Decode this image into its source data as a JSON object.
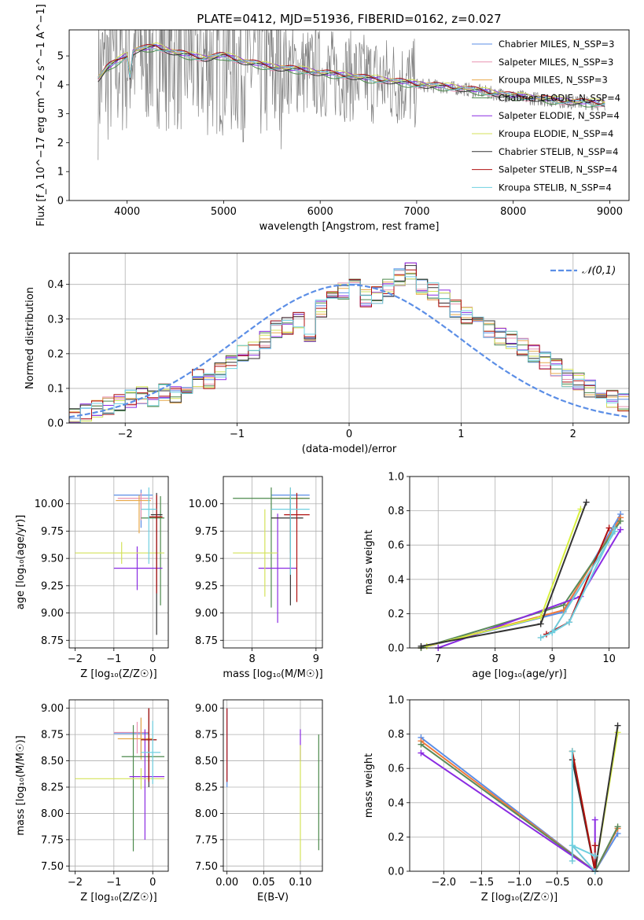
{
  "colors": {
    "series": [
      "#5b8ee6",
      "#e892b0",
      "#e8a84a",
      "#4c8a4c",
      "#8a2be2",
      "#d4e25a",
      "#333333",
      "#b01010",
      "#6fd0e0"
    ],
    "thick": [
      "#5b8ee6",
      "#f07a3c",
      "#5a8a5a",
      "#8a2be2",
      "#d8f040",
      "#333333",
      "#b01010",
      "#70c8d8"
    ],
    "grey_data": "#808080",
    "gauss": "#5b8ee6"
  },
  "chart_data": [
    {
      "id": "spectrum",
      "type": "line",
      "title": "PLATE=0412, MJD=51936, FIBERID=0162, z=0.027",
      "xlabel": "wavelength [Angstrom, rest frame]",
      "ylabel": "Flux [f_λ 10^−17 erg cm^−2 s^−1 A^−1]",
      "xlim": [
        3400,
        9200
      ],
      "ylim": [
        0,
        5.9
      ],
      "xticks": [
        4000,
        5000,
        6000,
        7000,
        8000,
        9000
      ],
      "yticks": [
        0,
        1,
        2,
        3,
        4,
        5
      ],
      "legend": [
        "Chabrier MILES, N_SSP=3",
        "Salpeter MILES, N_SSP=3",
        "Kroupa MILES, N_SSP=3",
        "Chabrier ELODIE, N_SSP=4",
        "Salpeter ELODIE, N_SSP=4",
        "Kroupa ELODIE, N_SSP=4",
        "Chabrier STELIB, N_SSP=4",
        "Salpeter STELIB, N_SSP=4",
        "Kroupa STELIB, N_SSP=4"
      ],
      "legend_position": "top-right",
      "continuum": {
        "x": [
          3700,
          3800,
          3900,
          4000,
          4100,
          4300,
          4500,
          4800,
          5000,
          5200,
          5500,
          5800,
          6000,
          6300,
          6500,
          6800,
          7000,
          7200,
          7500,
          7800,
          8000,
          8300,
          8600,
          8900
        ],
        "y": [
          4.2,
          4.6,
          4.8,
          5.0,
          5.2,
          5.3,
          5.1,
          4.9,
          5.0,
          4.8,
          4.6,
          4.5,
          4.4,
          4.3,
          4.2,
          4.1,
          4.0,
          3.95,
          3.85,
          3.7,
          3.6,
          3.5,
          3.4,
          3.35
        ]
      }
    },
    {
      "id": "residuals",
      "type": "line",
      "xlabel": "(data-model)/error",
      "ylabel": "Normed distribution",
      "xlim": [
        -2.5,
        2.5
      ],
      "ylim": [
        0,
        0.49
      ],
      "xticks": [
        -2,
        -1,
        0,
        1,
        2
      ],
      "yticks": [
        0.0,
        0.1,
        0.2,
        0.3,
        0.4
      ],
      "legend": [
        "𝒩(0,1)"
      ],
      "legend_position": "top-right",
      "bin_start": -2.5,
      "bin_width": 0.1,
      "hist": [
        0.02,
        0.03,
        0.04,
        0.05,
        0.06,
        0.07,
        0.08,
        0.07,
        0.09,
        0.08,
        0.11,
        0.13,
        0.12,
        0.15,
        0.17,
        0.2,
        0.21,
        0.24,
        0.27,
        0.28,
        0.3,
        0.26,
        0.33,
        0.37,
        0.38,
        0.39,
        0.36,
        0.37,
        0.39,
        0.42,
        0.44,
        0.39,
        0.38,
        0.36,
        0.33,
        0.31,
        0.29,
        0.27,
        0.25,
        0.24,
        0.22,
        0.2,
        0.18,
        0.16,
        0.13,
        0.12,
        0.1,
        0.09,
        0.07,
        0.06,
        0.05,
        0.05,
        0.04,
        0.035,
        0.03,
        0.03,
        0.025,
        0.02,
        0.02,
        0.02
      ]
    },
    {
      "id": "age-vs-z",
      "type": "scatter",
      "xlabel": "Z [log₁₀(Z/Z☉)]",
      "ylabel": "age  [log₁₀(age/yr)]",
      "xlim": [
        -2.15,
        0.4
      ],
      "ylim": [
        8.68,
        10.25
      ],
      "xticks": [
        -2,
        -1,
        0
      ],
      "yticks": [
        8.75,
        9.0,
        9.25,
        9.5,
        9.75,
        10.0
      ],
      "points": [
        {
          "x": -0.3,
          "y": 10.08,
          "xerr": [
            0.7,
            0.3
          ],
          "yerr": [
            0.3,
            0.05
          ],
          "s": 0
        },
        {
          "x": -0.3,
          "y": 10.05,
          "xerr": [
            0.6,
            0.3
          ],
          "yerr": [
            0.2,
            0.05
          ],
          "s": 1
        },
        {
          "x": -0.35,
          "y": 10.03,
          "xerr": [
            0.6,
            0.3
          ],
          "yerr": [
            0.3,
            0.05
          ],
          "s": 2
        },
        {
          "x": 0.2,
          "y": 9.87,
          "xerr": [
            0.5,
            0.1
          ],
          "yerr": [
            0.8,
            0.2
          ],
          "s": 3
        },
        {
          "x": -0.4,
          "y": 9.41,
          "xerr": [
            0.6,
            0.65
          ],
          "yerr": [
            0.2,
            0.2
          ],
          "s": 4
        },
        {
          "x": -0.8,
          "y": 9.55,
          "xerr": [
            1.2,
            1.1
          ],
          "yerr": [
            0.1,
            0.1
          ],
          "s": 5
        },
        {
          "x": 0.1,
          "y": 9.9,
          "xerr": [
            0.15,
            0.15
          ],
          "yerr": [
            1.1,
            0.2
          ],
          "s": 6
        },
        {
          "x": 0.1,
          "y": 9.88,
          "xerr": [
            0.2,
            0.15
          ],
          "yerr": [
            0.7,
            0.2
          ],
          "s": 7
        },
        {
          "x": -0.1,
          "y": 9.95,
          "xerr": [
            0.2,
            0.2
          ],
          "yerr": [
            0.5,
            0.2
          ],
          "s": 8
        }
      ]
    },
    {
      "id": "age-vs-mass",
      "type": "scatter",
      "xlabel": "mass [log₁₀(M/M☉)]",
      "ylabel": "",
      "xlim": [
        7.55,
        9.1
      ],
      "ylim": [
        8.68,
        10.25
      ],
      "xticks": [
        8,
        9
      ],
      "yticks": [
        8.75,
        9.0,
        9.25,
        9.5,
        9.75,
        10.0
      ],
      "points": [
        {
          "x": 8.6,
          "y": 10.08,
          "xerr": [
            0.3,
            0.3
          ],
          "yerr": [
            0.5,
            0.05
          ],
          "s": 0
        },
        {
          "x": 8.6,
          "y": 10.05,
          "xerr": [
            0.3,
            0.3
          ],
          "yerr": [
            0.5,
            0.05
          ],
          "s": 1
        },
        {
          "x": 8.6,
          "y": 10.05,
          "xerr": [
            0.2,
            0.2
          ],
          "yerr": [
            0.5,
            0.1
          ],
          "s": 2
        },
        {
          "x": 8.3,
          "y": 10.05,
          "xerr": [
            0.6,
            0.6
          ],
          "yerr": [
            1.0,
            0.1
          ],
          "s": 3
        },
        {
          "x": 8.4,
          "y": 9.41,
          "xerr": [
            0.3,
            0.3
          ],
          "yerr": [
            0.5,
            0.5
          ],
          "s": 4
        },
        {
          "x": 8.2,
          "y": 9.55,
          "xerr": [
            0.5,
            0.2
          ],
          "yerr": [
            0.4,
            0.4
          ],
          "s": 5
        },
        {
          "x": 8.6,
          "y": 9.87,
          "xerr": [
            0.3,
            0.2
          ],
          "yerr": [
            0.8,
            0.2
          ],
          "s": 6
        },
        {
          "x": 8.7,
          "y": 9.9,
          "xerr": [
            0.2,
            0.2
          ],
          "yerr": [
            0.8,
            0.2
          ],
          "s": 7
        },
        {
          "x": 8.6,
          "y": 9.95,
          "xerr": [
            0.3,
            0.3
          ],
          "yerr": [
            0.6,
            0.2
          ],
          "s": 8
        }
      ]
    },
    {
      "id": "weight-vs-age",
      "type": "line",
      "xlabel": "age  [log₁₀(age/yr)]",
      "ylabel": "mass weight",
      "xlim": [
        6.5,
        10.35
      ],
      "ylim": [
        0,
        1.0
      ],
      "xticks": [
        7,
        8,
        9,
        10
      ],
      "yticks": [
        0.0,
        0.2,
        0.4,
        0.6,
        0.8,
        1.0
      ],
      "series": [
        {
          "s": 0,
          "x": [
            6.7,
            9.2,
            10.2
          ],
          "y": [
            0.0,
            0.21,
            0.78
          ]
        },
        {
          "s": 1,
          "x": [
            6.7,
            9.2,
            10.2
          ],
          "y": [
            0.0,
            0.22,
            0.76
          ]
        },
        {
          "s": 2,
          "x": [
            6.7,
            9.2,
            10.2
          ],
          "y": [
            0.0,
            0.25,
            0.74
          ]
        },
        {
          "s": 3,
          "x": [
            7.0,
            9.5,
            10.2
          ],
          "y": [
            0.0,
            0.3,
            0.69
          ]
        },
        {
          "s": 4,
          "x": [
            6.8,
            8.8,
            9.5
          ],
          "y": [
            0.01,
            0.18,
            0.81
          ]
        },
        {
          "s": 5,
          "x": [
            6.7,
            8.8,
            9.6
          ],
          "y": [
            0.01,
            0.14,
            0.85
          ]
        },
        {
          "s": 6,
          "x": [
            8.9,
            9.3,
            10.0
          ],
          "y": [
            0.08,
            0.15,
            0.7
          ]
        },
        {
          "s": 7,
          "x": [
            8.8,
            9.0,
            10.1
          ],
          "y": [
            0.06,
            0.09,
            0.68
          ]
        },
        {
          "s": 8,
          "x": [
            9.0,
            9.3,
            10.1
          ],
          "y": [
            0.09,
            0.15,
            0.7
          ]
        }
      ]
    },
    {
      "id": "mass-vs-z",
      "type": "scatter",
      "xlabel": "Z [log₁₀(Z/Z☉)]",
      "ylabel": "mass [log₁₀(M/M☉)]",
      "xlim": [
        -2.15,
        0.4
      ],
      "ylim": [
        7.45,
        9.08
      ],
      "xticks": [
        -2,
        -1,
        0
      ],
      "yticks": [
        7.5,
        7.75,
        8.0,
        8.25,
        8.5,
        8.75,
        9.0
      ],
      "points": [
        {
          "x": -0.3,
          "y": 8.76,
          "xerr": [
            0.7,
            0.2
          ],
          "yerr": [
            0.2,
            0.15
          ],
          "s": 0
        },
        {
          "x": -0.4,
          "y": 8.77,
          "xerr": [
            0.6,
            0.3
          ],
          "yerr": [
            0.2,
            0.1
          ],
          "s": 1
        },
        {
          "x": -0.3,
          "y": 8.71,
          "xerr": [
            0.6,
            0.3
          ],
          "yerr": [
            0.2,
            0.2
          ],
          "s": 2
        },
        {
          "x": -0.5,
          "y": 8.54,
          "xerr": [
            0.3,
            0.8
          ],
          "yerr": [
            0.9,
            0.3
          ],
          "s": 3
        },
        {
          "x": -0.2,
          "y": 8.35,
          "xerr": [
            0.4,
            0.5
          ],
          "yerr": [
            0.6,
            0.45
          ],
          "s": 4
        },
        {
          "x": -0.3,
          "y": 8.33,
          "xerr": [
            1.7,
            0.6
          ],
          "yerr": [
            0.1,
            0.1
          ],
          "s": 5
        },
        {
          "x": -0.1,
          "y": 8.7,
          "xerr": [
            0.2,
            0.2
          ],
          "yerr": [
            0.45,
            0.3
          ],
          "s": 6
        },
        {
          "x": -0.1,
          "y": 8.7,
          "xerr": [
            0.2,
            0.2
          ],
          "yerr": [
            0.4,
            0.3
          ],
          "s": 7
        },
        {
          "x": 0.0,
          "y": 8.58,
          "xerr": [
            0.3,
            0.2
          ],
          "yerr": [
            0.3,
            0.3
          ],
          "s": 8
        }
      ]
    },
    {
      "id": "mass-vs-ebv",
      "type": "scatter",
      "xlabel": "E(B-V)",
      "ylabel": "",
      "xlim": [
        -0.005,
        0.13
      ],
      "ylim": [
        7.45,
        9.08
      ],
      "xticks": [
        0.0,
        0.05,
        0.1
      ],
      "xtick_labels": [
        "0.00",
        "0.05",
        "0.10"
      ],
      "yticks": [
        7.5,
        7.75,
        8.0,
        8.25,
        8.5,
        8.75,
        9.0
      ],
      "points": [
        {
          "x": 0.0,
          "y": 8.7,
          "xerr": [
            0,
            0
          ],
          "yerr": [
            0.45,
            0.3
          ],
          "s": 0
        },
        {
          "x": 0.0,
          "y": 8.7,
          "xerr": [
            0,
            0
          ],
          "yerr": [
            0.4,
            0.3
          ],
          "s": 7
        },
        {
          "x": 0.1,
          "y": 8.7,
          "xerr": [
            0,
            0
          ],
          "yerr": [
            0.2,
            0.1
          ],
          "s": 4
        },
        {
          "x": 0.1,
          "y": 8.2,
          "xerr": [
            0,
            0
          ],
          "yerr": [
            0.65,
            0.45
          ],
          "s": 5
        },
        {
          "x": 0.125,
          "y": 8.2,
          "xerr": [
            0,
            0
          ],
          "yerr": [
            0.55,
            0.55
          ],
          "s": 3
        }
      ]
    },
    {
      "id": "weight-vs-z",
      "type": "line",
      "xlabel": "Z [log₁₀(Z/Z☉)]",
      "ylabel": "mass weight",
      "xlim": [
        -2.45,
        0.45
      ],
      "ylim": [
        0,
        1.0
      ],
      "xticks": [
        -2.0,
        -1.5,
        -1.0,
        -0.5,
        0.0
      ],
      "xtick_labels": [
        "−2.0",
        "−1.5",
        "−1.0",
        "−0.5",
        "0.0"
      ],
      "yticks": [
        0.0,
        0.2,
        0.4,
        0.6,
        0.8,
        1.0
      ],
      "series": [
        {
          "s": 0,
          "x": [
            -2.3,
            0.0,
            0.3
          ],
          "y": [
            0.78,
            0.0,
            0.22
          ]
        },
        {
          "s": 1,
          "x": [
            -2.3,
            0.0,
            0.3
          ],
          "y": [
            0.76,
            0.0,
            0.25
          ]
        },
        {
          "s": 2,
          "x": [
            -2.3,
            0.0,
            0.3
          ],
          "y": [
            0.74,
            0.0,
            0.26
          ]
        },
        {
          "s": 3,
          "x": [
            -2.3,
            0.0,
            0.0
          ],
          "y": [
            0.69,
            0.0,
            0.3
          ]
        },
        {
          "s": 4,
          "x": [
            -0.3,
            0.0,
            0.3
          ],
          "y": [
            0.7,
            0.0,
            0.81
          ]
        },
        {
          "s": 5,
          "x": [
            -0.3,
            0.0,
            0.3
          ],
          "y": [
            0.65,
            0.0,
            0.85
          ]
        },
        {
          "s": 6,
          "x": [
            -0.3,
            0.0,
            0.0
          ],
          "y": [
            0.7,
            0.0,
            0.15
          ]
        },
        {
          "s": 7,
          "x": [
            -0.3,
            -0.3,
            0.0
          ],
          "y": [
            0.06,
            0.15,
            0.0
          ]
        },
        {
          "s": 8,
          "x": [
            -0.3,
            -0.3,
            0.0
          ],
          "y": [
            0.7,
            0.15,
            0.09
          ]
        }
      ]
    }
  ]
}
